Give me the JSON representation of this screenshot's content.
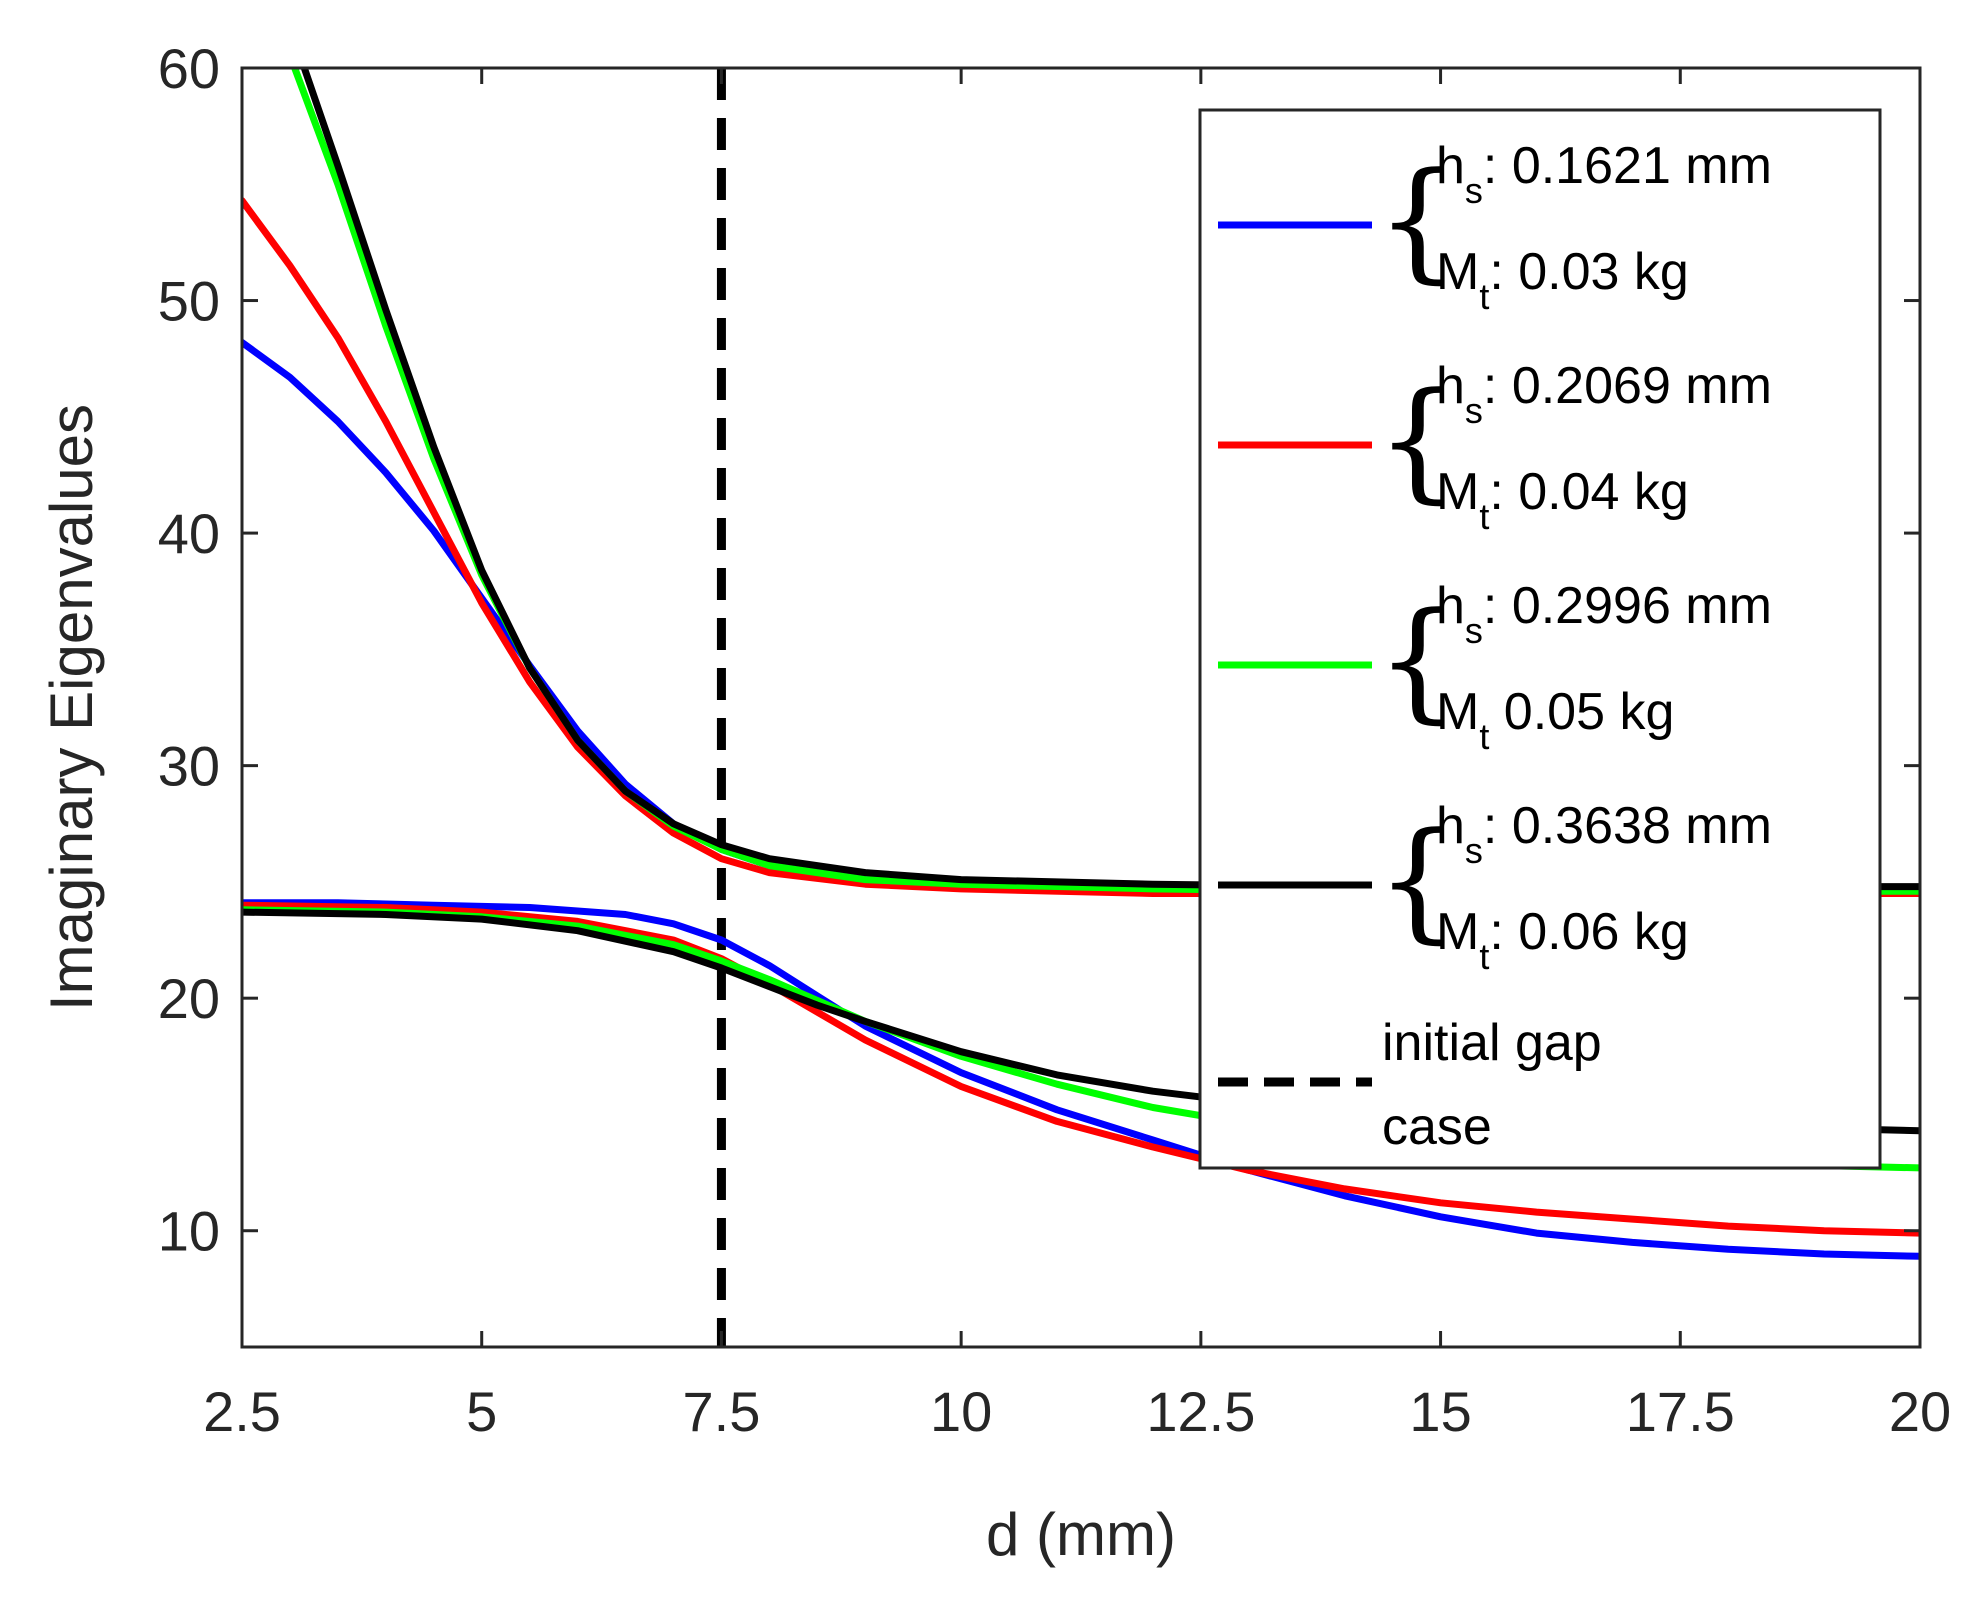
{
  "chart_data": {
    "type": "line",
    "title": "",
    "xlabel": "d (mm)",
    "ylabel": "Imaginary Eigenvalues",
    "xlim": [
      2.5,
      20
    ],
    "ylim": [
      5,
      60
    ],
    "x_ticks": [
      "2.5",
      "5",
      "7.5",
      "10",
      "12.5",
      "15",
      "17.5",
      "20"
    ],
    "y_ticks": [
      "10",
      "20",
      "30",
      "40",
      "50",
      "60"
    ],
    "x_tick_values": [
      2.5,
      5,
      7.5,
      10,
      12.5,
      15,
      17.5,
      20
    ],
    "y_tick_values": [
      10,
      20,
      30,
      40,
      50,
      60
    ],
    "grid": false,
    "legend_position": "top-right",
    "series": [
      {
        "name_h_prefix": "h",
        "name_h_sub": "s",
        "name_h_value": ": 0.1621 mm",
        "name_m_prefix": "M",
        "name_m_sub": "t",
        "name_m_value": ": 0.03 kg",
        "color": "#0000ff",
        "upper": [
          [
            2.5,
            48.2
          ],
          [
            3.0,
            46.7
          ],
          [
            3.5,
            44.8
          ],
          [
            4.0,
            42.6
          ],
          [
            4.5,
            40.1
          ],
          [
            5.0,
            37.2
          ],
          [
            5.5,
            34.3
          ],
          [
            6.0,
            31.5
          ],
          [
            6.5,
            29.2
          ],
          [
            7.0,
            27.5
          ],
          [
            7.5,
            26.4
          ],
          [
            8.0,
            25.7
          ],
          [
            9.0,
            25.1
          ],
          [
            10.0,
            24.9
          ],
          [
            12.0,
            24.7
          ],
          [
            14.0,
            24.6
          ],
          [
            16.0,
            24.6
          ],
          [
            18.0,
            24.6
          ],
          [
            20.0,
            24.6
          ]
        ],
        "lower": [
          [
            2.5,
            24.1
          ],
          [
            3.5,
            24.1
          ],
          [
            4.5,
            24.0
          ],
          [
            5.5,
            23.9
          ],
          [
            6.5,
            23.6
          ],
          [
            7.0,
            23.2
          ],
          [
            7.5,
            22.5
          ],
          [
            8.0,
            21.4
          ],
          [
            8.5,
            20.1
          ],
          [
            9.0,
            18.8
          ],
          [
            10.0,
            16.8
          ],
          [
            11.0,
            15.2
          ],
          [
            12.0,
            13.9
          ],
          [
            13.0,
            12.6
          ],
          [
            14.0,
            11.5
          ],
          [
            15.0,
            10.6
          ],
          [
            16.0,
            9.9
          ],
          [
            17.0,
            9.5
          ],
          [
            18.0,
            9.2
          ],
          [
            19.0,
            9.0
          ],
          [
            20.0,
            8.9
          ]
        ]
      },
      {
        "name_h_prefix": "h",
        "name_h_sub": "s",
        "name_h_value": ": 0.2069 mm",
        "name_m_prefix": "M",
        "name_m_sub": "t",
        "name_m_value": ": 0.04 kg",
        "color": "#ff0000",
        "upper": [
          [
            2.5,
            54.3
          ],
          [
            3.0,
            51.5
          ],
          [
            3.5,
            48.4
          ],
          [
            4.0,
            44.8
          ],
          [
            4.5,
            40.9
          ],
          [
            5.0,
            37.0
          ],
          [
            5.5,
            33.6
          ],
          [
            6.0,
            30.8
          ],
          [
            6.5,
            28.7
          ],
          [
            7.0,
            27.1
          ],
          [
            7.5,
            26.0
          ],
          [
            8.0,
            25.4
          ],
          [
            9.0,
            24.9
          ],
          [
            10.0,
            24.7
          ],
          [
            12.0,
            24.5
          ],
          [
            14.0,
            24.5
          ],
          [
            16.0,
            24.5
          ],
          [
            18.0,
            24.5
          ],
          [
            20.0,
            24.5
          ]
        ],
        "lower": [
          [
            2.5,
            24.0
          ],
          [
            4.0,
            23.9
          ],
          [
            5.0,
            23.7
          ],
          [
            6.0,
            23.3
          ],
          [
            7.0,
            22.5
          ],
          [
            7.5,
            21.7
          ],
          [
            8.0,
            20.6
          ],
          [
            8.5,
            19.4
          ],
          [
            9.0,
            18.2
          ],
          [
            10.0,
            16.2
          ],
          [
            11.0,
            14.7
          ],
          [
            12.0,
            13.6
          ],
          [
            13.0,
            12.6
          ],
          [
            14.0,
            11.8
          ],
          [
            15.0,
            11.2
          ],
          [
            16.0,
            10.8
          ],
          [
            17.0,
            10.5
          ],
          [
            18.0,
            10.2
          ],
          [
            19.0,
            10.0
          ],
          [
            20.0,
            9.9
          ]
        ]
      },
      {
        "name_h_prefix": "h",
        "name_h_sub": "s",
        "name_h_value": ": 0.2996 mm",
        "name_m_prefix": "M",
        "name_m_sub": "t",
        "name_m_value": " 0.05 kg",
        "color": "#00ff00",
        "upper": [
          [
            3.05,
            60.0
          ],
          [
            3.5,
            55.0
          ],
          [
            4.0,
            48.9
          ],
          [
            4.5,
            43.2
          ],
          [
            5.0,
            38.2
          ],
          [
            5.5,
            34.2
          ],
          [
            6.0,
            31.1
          ],
          [
            6.5,
            28.9
          ],
          [
            7.0,
            27.4
          ],
          [
            7.5,
            26.4
          ],
          [
            8.0,
            25.7
          ],
          [
            9.0,
            25.1
          ],
          [
            10.0,
            24.9
          ],
          [
            12.0,
            24.7
          ],
          [
            14.0,
            24.6
          ],
          [
            16.0,
            24.6
          ],
          [
            18.0,
            24.6
          ],
          [
            20.0,
            24.6
          ]
        ],
        "lower": [
          [
            2.5,
            23.8
          ],
          [
            4.0,
            23.7
          ],
          [
            5.0,
            23.5
          ],
          [
            6.0,
            23.1
          ],
          [
            7.0,
            22.3
          ],
          [
            7.5,
            21.6
          ],
          [
            8.0,
            20.8
          ],
          [
            8.5,
            19.9
          ],
          [
            9.0,
            19.0
          ],
          [
            10.0,
            17.5
          ],
          [
            11.0,
            16.3
          ],
          [
            12.0,
            15.3
          ],
          [
            13.0,
            14.6
          ],
          [
            14.0,
            14.0
          ],
          [
            15.0,
            13.6
          ],
          [
            16.0,
            13.3
          ],
          [
            17.0,
            13.0
          ],
          [
            18.0,
            12.9
          ],
          [
            19.0,
            12.8
          ],
          [
            20.0,
            12.7
          ]
        ]
      },
      {
        "name_h_prefix": "h",
        "name_h_sub": "s",
        "name_h_value": ": 0.3638 mm",
        "name_m_prefix": "M",
        "name_m_sub": "t",
        "name_m_value": ": 0.06 kg",
        "color": "#000000",
        "upper": [
          [
            3.15,
            60.0
          ],
          [
            3.5,
            55.8
          ],
          [
            4.0,
            49.6
          ],
          [
            4.5,
            43.7
          ],
          [
            5.0,
            38.4
          ],
          [
            5.5,
            34.2
          ],
          [
            6.0,
            31.1
          ],
          [
            6.5,
            28.9
          ],
          [
            7.0,
            27.5
          ],
          [
            7.5,
            26.6
          ],
          [
            8.0,
            26.0
          ],
          [
            9.0,
            25.4
          ],
          [
            10.0,
            25.1
          ],
          [
            12.0,
            24.9
          ],
          [
            14.0,
            24.8
          ],
          [
            16.0,
            24.8
          ],
          [
            18.0,
            24.8
          ],
          [
            20.0,
            24.8
          ]
        ],
        "lower": [
          [
            2.5,
            23.7
          ],
          [
            4.0,
            23.6
          ],
          [
            5.0,
            23.4
          ],
          [
            6.0,
            22.9
          ],
          [
            7.0,
            22.0
          ],
          [
            7.5,
            21.3
          ],
          [
            8.0,
            20.5
          ],
          [
            8.5,
            19.7
          ],
          [
            9.0,
            19.0
          ],
          [
            10.0,
            17.7
          ],
          [
            11.0,
            16.7
          ],
          [
            12.0,
            16.0
          ],
          [
            13.0,
            15.5
          ],
          [
            14.0,
            15.2
          ],
          [
            15.0,
            14.9
          ],
          [
            16.0,
            14.7
          ],
          [
            17.0,
            14.6
          ],
          [
            18.0,
            14.5
          ],
          [
            19.0,
            14.4
          ],
          [
            20.0,
            14.3
          ]
        ]
      }
    ],
    "reference_line": {
      "name_line1": "initial gap",
      "name_line2": "case",
      "x": 7.5,
      "style": "dashed",
      "color": "#000000"
    }
  }
}
